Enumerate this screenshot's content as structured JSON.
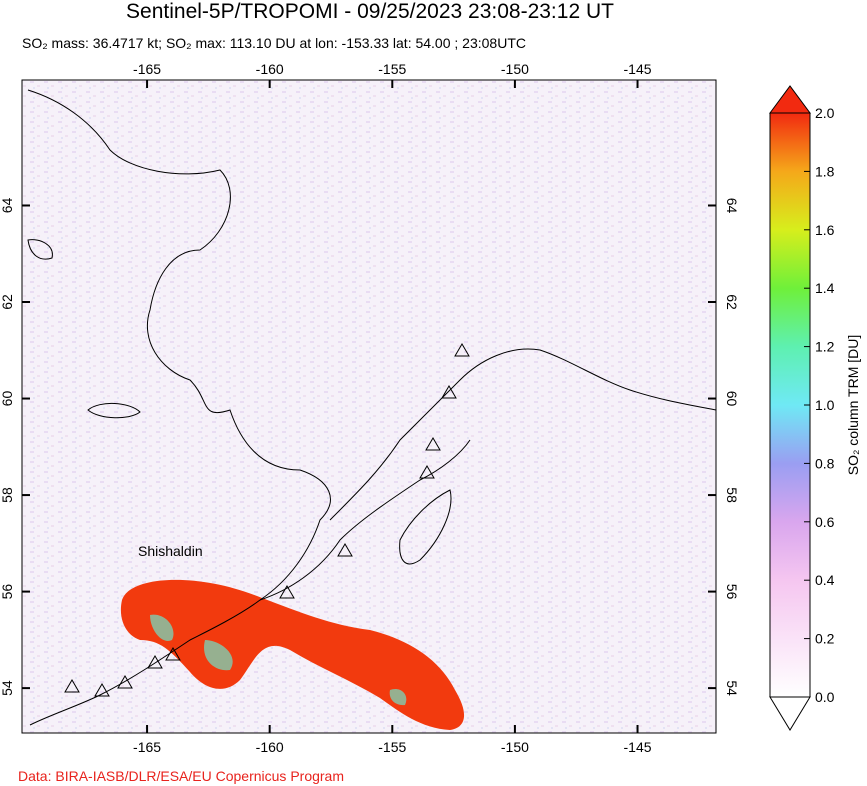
{
  "title": "Sentinel-5P/TROPOMI - 09/25/2023 23:08-23:12 UT",
  "subtitle": "SO₂ mass: 36.4717 kt; SO₂ max: 113.10 DU at lon: -153.33 lat: 54.00 ; 23:08UTC",
  "map": {
    "lon_range": [
      -170.1,
      -141.8
    ],
    "lat_range": [
      53.07,
      66.6
    ],
    "lon_ticks": [
      -165,
      -160,
      -155,
      -150,
      -145
    ],
    "lat_ticks": [
      54,
      56,
      58,
      60,
      62,
      64
    ],
    "annotation": "Shishaldin"
  },
  "colorbar": {
    "label": "SO₂ column TRM [DU]",
    "range": [
      0,
      2
    ],
    "ticks": [
      {
        "value": 0,
        "label": "0.0"
      },
      {
        "value": 0.2,
        "label": "0.2"
      },
      {
        "value": 0.4,
        "label": "0.4"
      },
      {
        "value": 0.6,
        "label": "0.6"
      },
      {
        "value": 0.8,
        "label": "0.8"
      },
      {
        "value": 1,
        "label": "1.0"
      },
      {
        "value": 1.2,
        "label": "1.2"
      },
      {
        "value": 1.4,
        "label": "1.4"
      },
      {
        "value": 1.6,
        "label": "1.6"
      },
      {
        "value": 1.8,
        "label": "1.8"
      },
      {
        "value": 2,
        "label": "2.0"
      }
    ]
  },
  "credit": "Data: BIRA-IASB/DLR/ESA/EU Copernicus Program"
}
